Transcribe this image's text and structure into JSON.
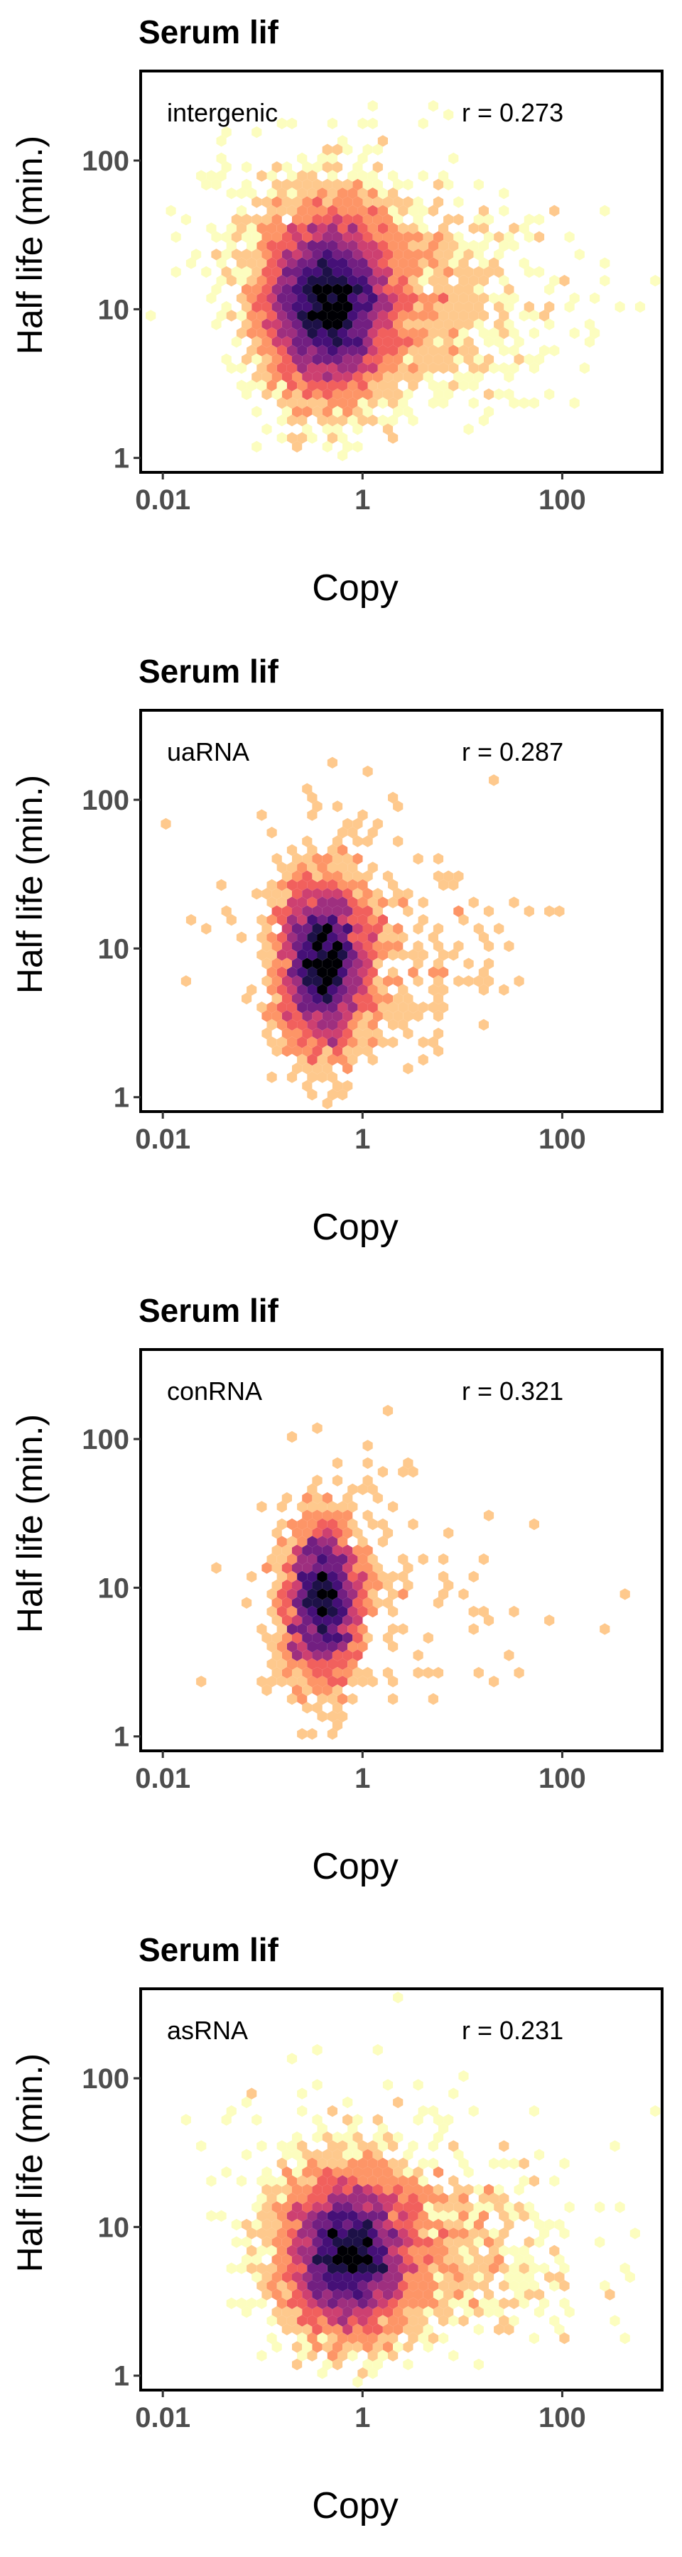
{
  "chart_data": [
    {
      "type": "heatmap",
      "subtype": "hexbin",
      "title": "Serum lif",
      "xlabel": "Copy",
      "ylabel": "Half life (min.)",
      "x_scale": "log10",
      "y_scale": "log10",
      "xlim": [
        0.006,
        1000
      ],
      "ylim": [
        0.8,
        400
      ],
      "x_ticks": [
        {
          "value": 0.01,
          "label": "0.01"
        },
        {
          "value": 1,
          "label": "1"
        },
        {
          "value": 100,
          "label": "100"
        }
      ],
      "y_ticks": [
        {
          "value": 1,
          "label": "1"
        },
        {
          "value": 10,
          "label": "10"
        },
        {
          "value": 100,
          "label": "100"
        }
      ],
      "category": "intergenic",
      "correlation": "r = 0.273",
      "density_center": {
        "x": 0.45,
        "y": 11
      },
      "density_spread": {
        "x_log10": 0.32,
        "y_log10": 0.3
      },
      "point_count_relative": 1.0,
      "tail_weight": 1.0,
      "grid": false,
      "colormap": [
        "#fcfdbf",
        "#fec98d",
        "#fd9567",
        "#f1605d",
        "#cd4071",
        "#9e2f7f",
        "#721f81",
        "#451077",
        "#1d1147",
        "#000004"
      ]
    },
    {
      "type": "heatmap",
      "subtype": "hexbin",
      "title": "Serum lif",
      "xlabel": "Copy",
      "ylabel": "Half life (min.)",
      "x_scale": "log10",
      "y_scale": "log10",
      "xlim": [
        0.006,
        1000
      ],
      "ylim": [
        0.8,
        400
      ],
      "x_ticks": [
        {
          "value": 0.01,
          "label": "0.01"
        },
        {
          "value": 1,
          "label": "1"
        },
        {
          "value": 100,
          "label": "100"
        }
      ],
      "y_ticks": [
        {
          "value": 1,
          "label": "1"
        },
        {
          "value": 10,
          "label": "10"
        },
        {
          "value": 100,
          "label": "100"
        }
      ],
      "category": "uaRNA",
      "correlation": "r = 0.287",
      "density_center": {
        "x": 0.4,
        "y": 8
      },
      "density_spread": {
        "x_log10": 0.22,
        "y_log10": 0.28
      },
      "point_count_relative": 0.4,
      "tail_weight": 0.5,
      "grid": false,
      "colormap": [
        "#fcfdbf",
        "#fec98d",
        "#fd9567",
        "#f1605d",
        "#cd4071",
        "#9e2f7f",
        "#721f81",
        "#451077",
        "#1d1147",
        "#000004"
      ]
    },
    {
      "type": "heatmap",
      "subtype": "hexbin",
      "title": "Serum lif",
      "xlabel": "Copy",
      "ylabel": "Half life (min.)",
      "x_scale": "log10",
      "y_scale": "log10",
      "xlim": [
        0.006,
        1000
      ],
      "ylim": [
        0.8,
        400
      ],
      "x_ticks": [
        {
          "value": 0.01,
          "label": "0.01"
        },
        {
          "value": 1,
          "label": "1"
        },
        {
          "value": 100,
          "label": "100"
        }
      ],
      "y_ticks": [
        {
          "value": 1,
          "label": "1"
        },
        {
          "value": 10,
          "label": "10"
        },
        {
          "value": 100,
          "label": "100"
        }
      ],
      "category": "conRNA",
      "correlation": "r = 0.321",
      "density_center": {
        "x": 0.4,
        "y": 8
      },
      "density_spread": {
        "x_log10": 0.2,
        "y_log10": 0.27
      },
      "point_count_relative": 0.25,
      "tail_weight": 0.3,
      "grid": false,
      "colormap": [
        "#fcfdbf",
        "#fec98d",
        "#fd9567",
        "#f1605d",
        "#cd4071",
        "#9e2f7f",
        "#721f81",
        "#451077",
        "#1d1147",
        "#000004"
      ]
    },
    {
      "type": "heatmap",
      "subtype": "hexbin",
      "title": "Serum lif",
      "xlabel": "Copy",
      "ylabel": "Half life (min.)",
      "x_scale": "log10",
      "y_scale": "log10",
      "xlim": [
        0.006,
        1000
      ],
      "ylim": [
        0.8,
        400
      ],
      "x_ticks": [
        {
          "value": 0.01,
          "label": "0.01"
        },
        {
          "value": 1,
          "label": "1"
        },
        {
          "value": 100,
          "label": "100"
        }
      ],
      "y_ticks": [
        {
          "value": 1,
          "label": "1"
        },
        {
          "value": 10,
          "label": "10"
        },
        {
          "value": 100,
          "label": "100"
        }
      ],
      "category": "asRNA",
      "correlation": "r = 0.231",
      "density_center": {
        "x": 0.7,
        "y": 6.5
      },
      "density_spread": {
        "x_log10": 0.32,
        "y_log10": 0.26
      },
      "point_count_relative": 0.7,
      "tail_weight": 1.0,
      "grid": false,
      "colormap": [
        "#fcfdbf",
        "#fec98d",
        "#fd9567",
        "#f1605d",
        "#cd4071",
        "#9e2f7f",
        "#721f81",
        "#451077",
        "#1d1147",
        "#000004"
      ]
    }
  ]
}
